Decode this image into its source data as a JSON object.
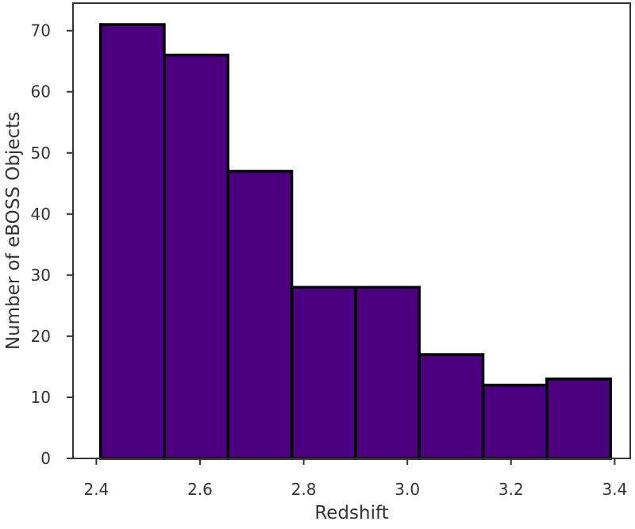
{
  "chart_data": {
    "type": "bar",
    "title": "",
    "xlabel": "Redshift",
    "ylabel": "Number of eBOSS Objects",
    "bin_edges": [
      2.408,
      2.531,
      2.654,
      2.777,
      2.9,
      3.023,
      3.146,
      3.269,
      3.392
    ],
    "values": [
      71,
      66,
      47,
      28,
      28,
      17,
      12,
      13
    ],
    "xlim": [
      2.355,
      3.43
    ],
    "ylim": [
      0,
      74.5
    ],
    "x_ticks": [
      2.4,
      2.6,
      2.8,
      3.0,
      3.2,
      3.4
    ],
    "x_tick_labels": [
      "2.4",
      "2.6",
      "2.8",
      "3.0",
      "3.2",
      "3.4"
    ],
    "y_ticks": [
      0,
      10,
      20,
      30,
      40,
      50,
      60,
      70
    ],
    "y_tick_labels": [
      "0",
      "10",
      "20",
      "30",
      "40",
      "50",
      "60",
      "70"
    ],
    "grid": false,
    "bar_color": "#4b0080",
    "edge_color": "#000000"
  }
}
